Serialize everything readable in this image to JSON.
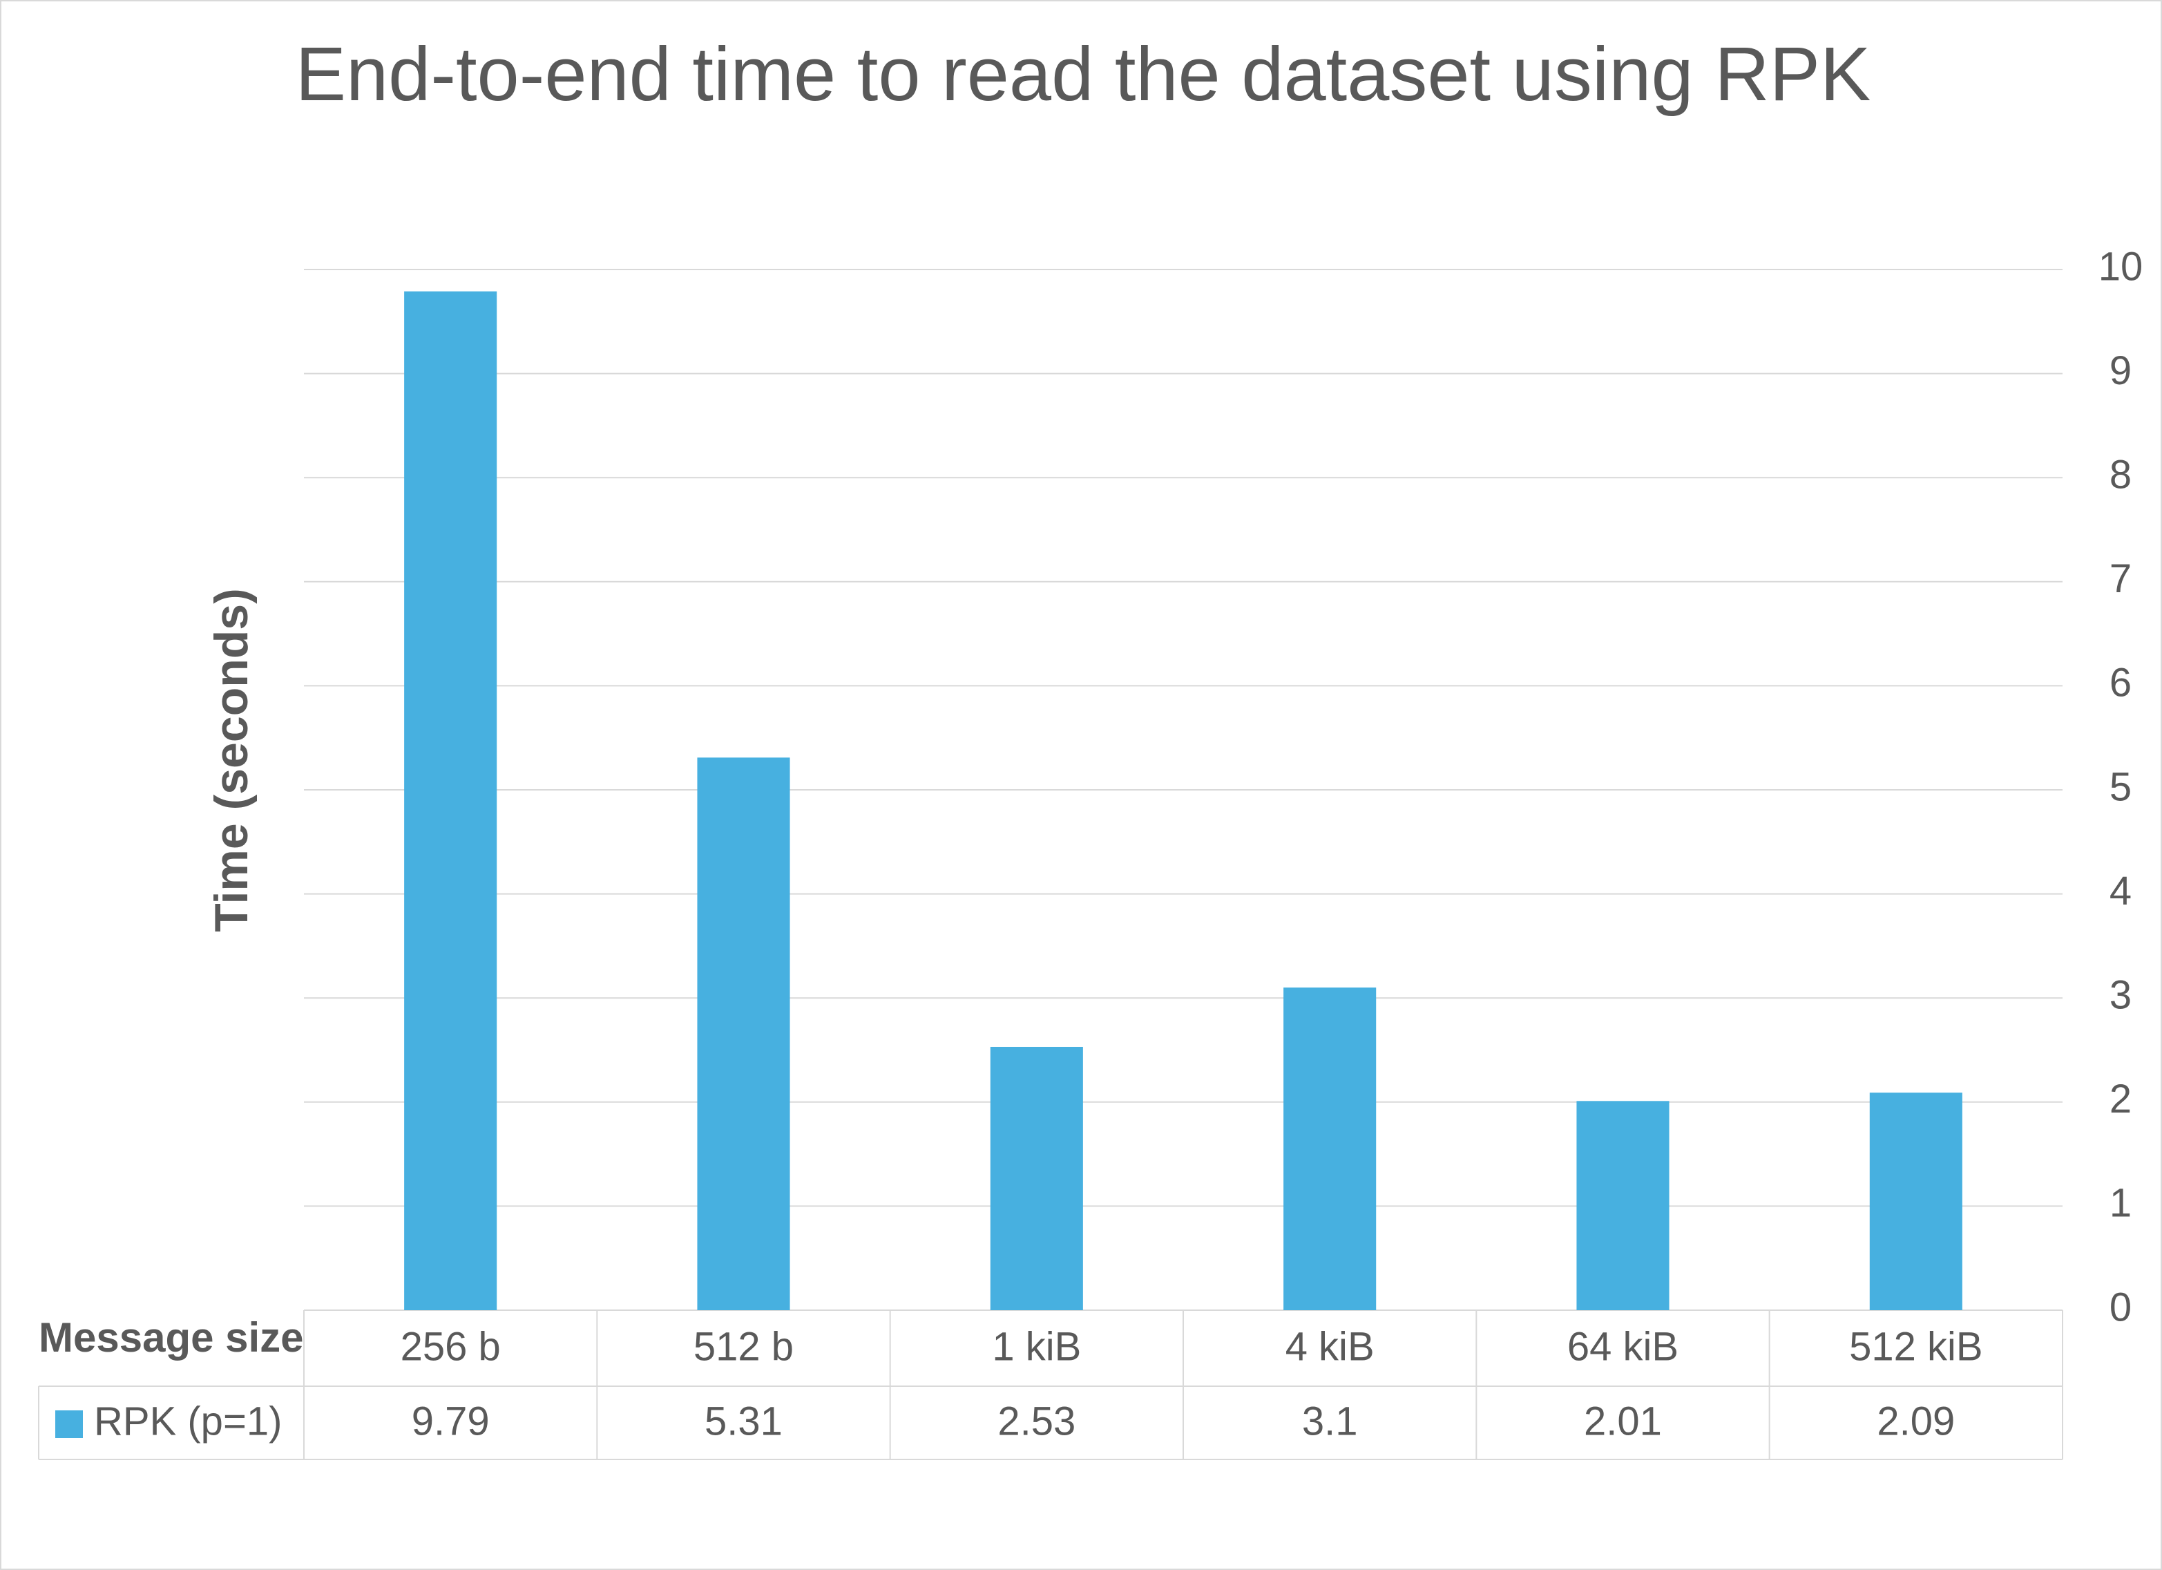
{
  "chart_data": {
    "type": "bar",
    "title": "End-to-end time to read the dataset using RPK",
    "y_label": "Time (seconds)",
    "table_header": "Message size",
    "categories": [
      "256 b",
      "512 b",
      "1 kiB",
      "4 kiB",
      "64 kiB",
      "512 kiB"
    ],
    "series": [
      {
        "name": "RPK (p=1)",
        "color": "#47b0e0",
        "values": [
          9.79,
          5.31,
          2.53,
          3.1,
          2.01,
          2.09
        ]
      }
    ],
    "ylim": [
      0,
      10
    ],
    "yticks": [
      0,
      1,
      2,
      3,
      4,
      5,
      6,
      7,
      8,
      9,
      10
    ],
    "grid": true,
    "y_axis_side": "right"
  }
}
